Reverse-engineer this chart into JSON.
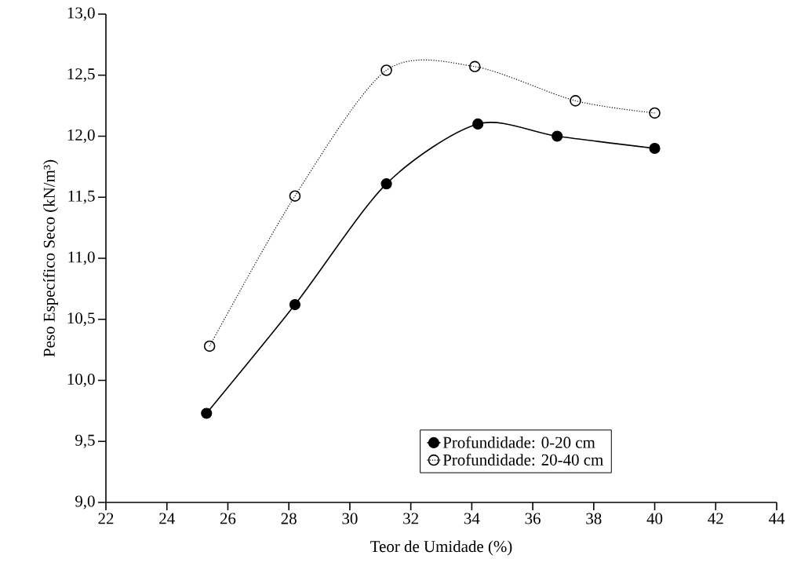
{
  "chart_data": {
    "type": "line",
    "xlabel": "Teor de Umidade (%)",
    "ylabel": "Peso Específico Seco (kN/m³)",
    "xlim": [
      22,
      44
    ],
    "xticks": [
      22,
      24,
      26,
      28,
      30,
      32,
      34,
      36,
      38,
      40,
      42,
      44
    ],
    "ylim": [
      9,
      13
    ],
    "yticks": [
      {
        "value": 9,
        "label": "9,0"
      },
      {
        "value": 9.5,
        "label": "9,5"
      },
      {
        "value": 10,
        "label": "10,0"
      },
      {
        "value": 10.5,
        "label": "10,5"
      },
      {
        "value": 11,
        "label": "11,0"
      },
      {
        "value": 11.5,
        "label": "11,5"
      },
      {
        "value": 12,
        "label": "12,0"
      },
      {
        "value": 12.5,
        "label": "12,5"
      },
      {
        "value": 13,
        "label": "13,0"
      }
    ],
    "grid": false,
    "legend": "bottom right",
    "series": [
      {
        "name": "Profundidade: 0-20 cm",
        "color": "#000000",
        "marker": "circle",
        "line_style": "solid",
        "x": [
          25.3,
          28.2,
          31.2,
          34.2,
          36.8,
          40.0
        ],
        "values": [
          9.73,
          10.62,
          11.61,
          12.1,
          12.0,
          11.9
        ]
      },
      {
        "name": "Profundidade: 20-40 cm",
        "color": "#000000",
        "marker": "open circle",
        "line_style": "dotted",
        "x": [
          25.4,
          28.2,
          31.2,
          34.1,
          37.4,
          40.0
        ],
        "values": [
          10.28,
          11.51,
          12.54,
          12.57,
          12.29,
          12.19
        ]
      }
    ]
  }
}
